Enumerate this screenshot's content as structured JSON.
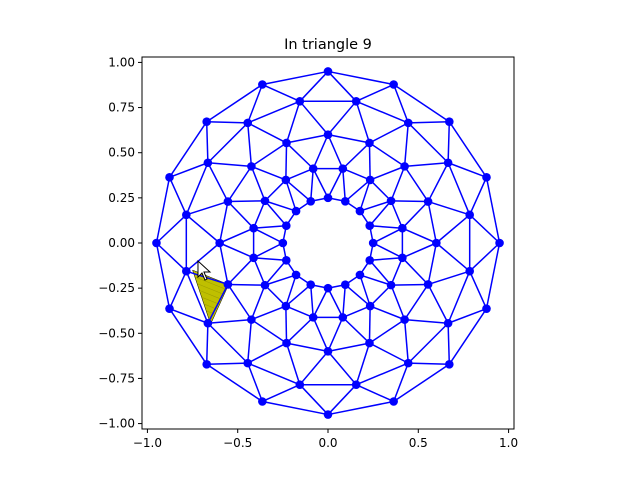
{
  "chart_data": {
    "type": "scatter",
    "title": "In triangle 9",
    "xlabel": "",
    "ylabel": "",
    "xlim": [
      -1.03,
      1.03
    ],
    "ylim": [
      -1.03,
      1.03
    ],
    "xticks": [
      -1.0,
      -0.5,
      0.0,
      0.5,
      1.0
    ],
    "yticks": [
      1.0,
      0.75,
      0.5,
      0.25,
      0.0,
      -0.25,
      -0.5,
      -0.75,
      -1.0
    ],
    "xtick_labels": [
      "−1.0",
      "−0.5",
      "0.0",
      "0.5",
      "1.0"
    ],
    "ytick_labels": [
      "1.00",
      "0.75",
      "0.50",
      "0.25",
      "0.00",
      "−0.25",
      "−0.50",
      "−0.75",
      "−1.00"
    ],
    "grid": false,
    "aspect": "equal",
    "colors": {
      "mesh": "#0000ff",
      "highlight_fill": "#bfbf00",
      "axes": "#000000"
    },
    "mesh": {
      "ring_radii": [
        0.95,
        0.8,
        0.6,
        0.42,
        0.25
      ],
      "points_per_ring": 16,
      "ring_phase_deg": [
        90,
        101.25,
        90,
        101.25,
        90
      ]
    },
    "highlighted_triangle": {
      "index": 9,
      "vertices": [
        [
          -0.75,
          -0.15
        ],
        [
          -0.55,
          -0.23
        ],
        [
          -0.65,
          -0.45
        ]
      ]
    },
    "cursor_point": [
      -0.72,
      -0.1
    ]
  }
}
